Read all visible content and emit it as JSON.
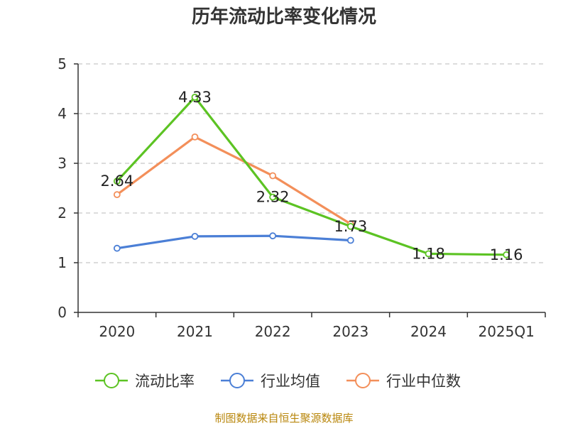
{
  "chart_data": {
    "type": "line",
    "title": "历年流动比率变化情况",
    "categories": [
      "2020",
      "2021",
      "2022",
      "2023",
      "2024",
      "2025Q1"
    ],
    "ylim": [
      0,
      5
    ],
    "yticks": [
      "0",
      "1",
      "2",
      "3",
      "4",
      "5"
    ],
    "grid": true,
    "legend_position": "bottom",
    "series": [
      {
        "name": "流动比率",
        "color": "#5cc323",
        "values": [
          2.64,
          4.33,
          2.32,
          1.73,
          1.18,
          1.16
        ],
        "labels": [
          "2.64",
          "4.33",
          "2.32",
          "1.73",
          "1.18",
          "1.16"
        ]
      },
      {
        "name": "行业均值",
        "color": "#4b7fd6",
        "values": [
          1.29,
          1.53,
          1.54,
          1.45,
          null,
          null
        ]
      },
      {
        "name": "行业中位数",
        "color": "#f38f5a",
        "values": [
          2.37,
          3.53,
          2.75,
          1.78,
          null,
          null
        ]
      }
    ]
  },
  "source": "制图数据来自恒生聚源数据库"
}
